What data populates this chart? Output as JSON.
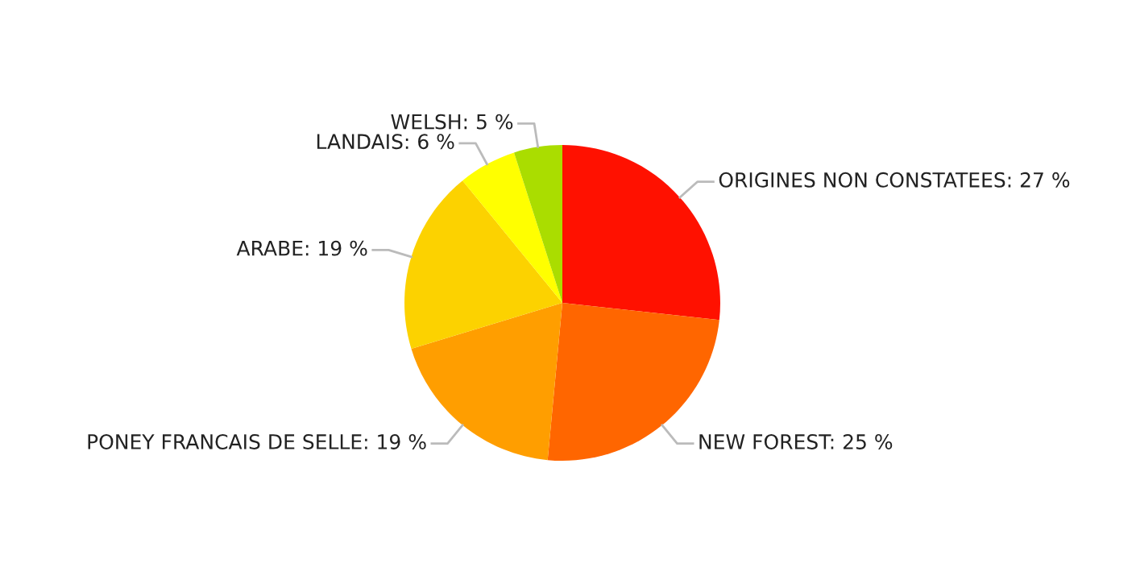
{
  "chart_data": {
    "type": "pie",
    "categories": [
      "ORIGINES NON CONSTATEES",
      "NEW FOREST",
      "PONEY FRANCAIS DE SELLE",
      "ARABE",
      "LANDAIS",
      "WELSH"
    ],
    "values": [
      27,
      25,
      19,
      19,
      6,
      5
    ],
    "value_labels": [
      "27 %",
      "25 %",
      "19 %",
      "19 %",
      "6 %",
      "5 %"
    ],
    "colors": [
      "#ff1100",
      "#ff6600",
      "#ff9e00",
      "#fcd200",
      "#ffff00",
      "#aadd00"
    ]
  }
}
